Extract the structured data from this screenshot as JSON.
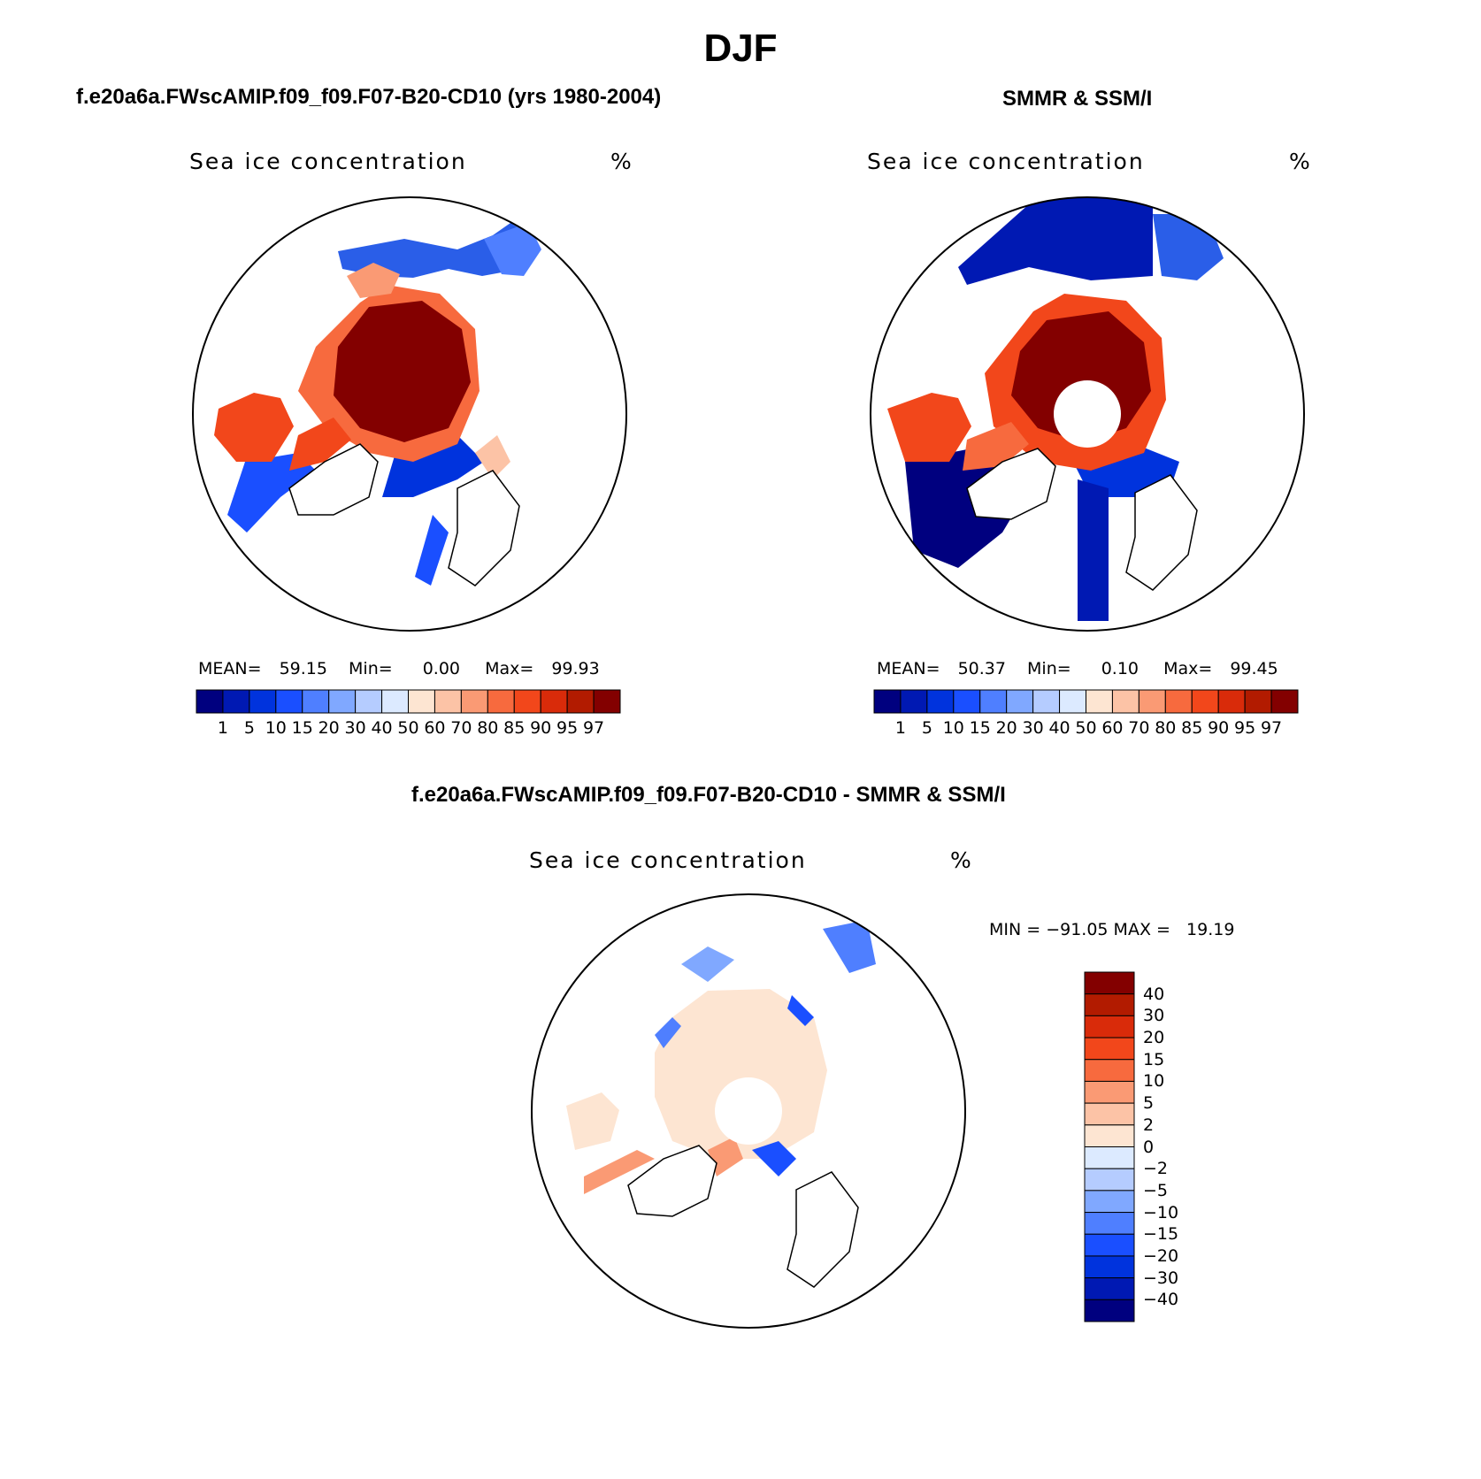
{
  "title": "DJF",
  "panels": [
    {
      "id": "model",
      "title": "f.e20a6a.FWscAMIP.f09_f09.F07-B20-CD10 (yrs 1980-2004)",
      "variable": "Sea ice concentration",
      "units": "%",
      "mean_label": "MEAN=",
      "mean": "59.15",
      "min_label": "Min=",
      "min": "0.00",
      "max_label": "Max=",
      "max": "99.93",
      "pole_hole": false
    },
    {
      "id": "obs",
      "title": "SMMR & SSM/I",
      "variable": "Sea ice concentration",
      "units": "%",
      "mean_label": "MEAN=",
      "mean": "50.37",
      "min_label": "Min=",
      "min": "0.10",
      "max_label": "Max=",
      "max": "99.45",
      "pole_hole": true
    },
    {
      "id": "diff",
      "title": "f.e20a6a.FWscAMIP.f09_f09.F07-B20-CD10 - SMMR & SSM/I",
      "variable": "Sea ice concentration",
      "units": "%",
      "minmax_text": "MIN = −91.05 MAX =   19.19",
      "pole_hole": true
    }
  ],
  "colorbar_abs": {
    "labels": [
      "1",
      "5",
      "10",
      "15",
      "20",
      "30",
      "40",
      "50",
      "60",
      "70",
      "80",
      "85",
      "90",
      "95",
      "97"
    ],
    "colors": [
      "#00007f",
      "#0019b3",
      "#0033dd",
      "#1a4fff",
      "#4f7fff",
      "#80a8ff",
      "#b5ccff",
      "#dceaff",
      "#fde5d2",
      "#fcc3a6",
      "#fa9a74",
      "#f76a3e",
      "#f2471b",
      "#d92b0a",
      "#b21b00",
      "#830000"
    ]
  },
  "colorbar_diff": {
    "labels": [
      "40",
      "30",
      "20",
      "15",
      "10",
      "5",
      "2",
      "0",
      "−2",
      "−5",
      "−10",
      "−15",
      "−20",
      "−30",
      "−40"
    ],
    "colors": [
      "#830000",
      "#b21b00",
      "#d92b0a",
      "#f2471b",
      "#f76a3e",
      "#fa9a74",
      "#fcc3a6",
      "#fde5d2",
      "#dceaff",
      "#b5ccff",
      "#80a8ff",
      "#4f7fff",
      "#1a4fff",
      "#0033dd",
      "#0019b3",
      "#00007f"
    ]
  }
}
